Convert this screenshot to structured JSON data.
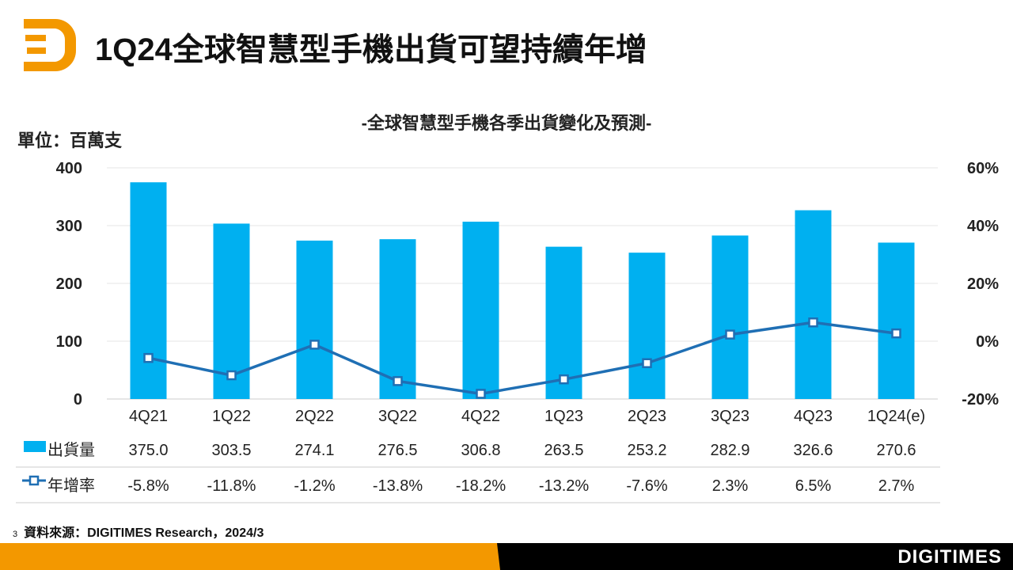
{
  "header": {
    "title": "1Q24全球智慧型手機出貨可望持續年增"
  },
  "footer": {
    "page": "3",
    "source": "資料來源：DIGITIMES Research，2024/3",
    "brand": "DIGITIMES"
  },
  "colors": {
    "bar": "#00b0f0",
    "line": "#1f6fb4",
    "accent": "#f39800"
  },
  "chart_data": {
    "type": "bar",
    "title": "-全球智慧型手機各季出貨變化及預測-",
    "ylabel": "單位：百萬支",
    "categories": [
      "4Q21",
      "1Q22",
      "2Q22",
      "3Q22",
      "4Q22",
      "1Q23",
      "2Q23",
      "3Q23",
      "4Q23",
      "1Q24(e)"
    ],
    "ylim": [
      0,
      400
    ],
    "yticks": [
      "0",
      "100",
      "200",
      "300",
      "400"
    ],
    "y2lim": [
      -20,
      60
    ],
    "y2ticks": [
      "-20%",
      "0%",
      "20%",
      "40%",
      "60%"
    ],
    "series": [
      {
        "name": "出貨量",
        "type": "bar",
        "values": [
          375.0,
          303.5,
          274.1,
          276.5,
          306.8,
          263.5,
          253.2,
          282.9,
          326.6,
          270.6
        ],
        "labels": [
          "375.0",
          "303.5",
          "274.1",
          "276.5",
          "306.8",
          "263.5",
          "253.2",
          "282.9",
          "326.6",
          "270.6"
        ]
      },
      {
        "name": "年增率",
        "type": "line",
        "axis": "right",
        "values": [
          -5.8,
          -11.8,
          -1.2,
          -13.8,
          -18.2,
          -13.2,
          -7.6,
          2.3,
          6.5,
          2.7
        ],
        "labels": [
          "-5.8%",
          "-11.8%",
          "-1.2%",
          "-13.8%",
          "-18.2%",
          "-13.2%",
          "-7.6%",
          "2.3%",
          "6.5%",
          "2.7%"
        ]
      }
    ]
  }
}
